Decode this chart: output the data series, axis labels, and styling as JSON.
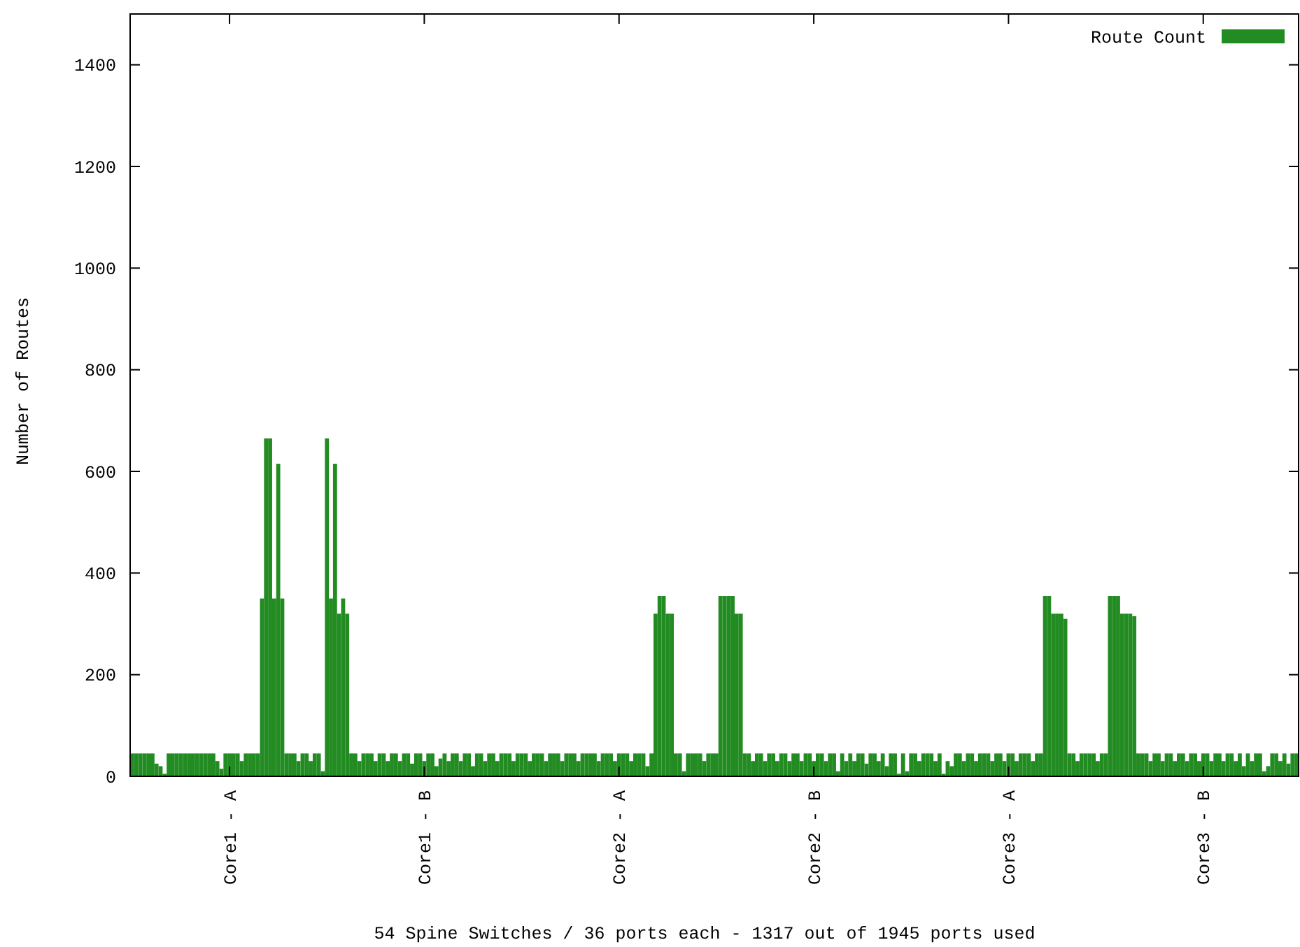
{
  "chart_data": {
    "type": "bar",
    "xlabel": "54 Spine Switches / 36 ports each - 1317 out of 1945 ports used",
    "ylabel": "Number of Routes",
    "legend": "top right",
    "ylim": [
      0,
      1500
    ],
    "yticks": [
      0,
      200,
      400,
      600,
      800,
      1000,
      1200,
      1400
    ],
    "categories": [
      null,
      null,
      null,
      null,
      null,
      null,
      null,
      null,
      null,
      null,
      null,
      null,
      null,
      null,
      null,
      null,
      null,
      null,
      null,
      null,
      null,
      null,
      null,
      null,
      "Core1 - A",
      null,
      null,
      null,
      null,
      null,
      null,
      null,
      null,
      null,
      null,
      null,
      null,
      null,
      null,
      null,
      null,
      null,
      null,
      null,
      null,
      null,
      null,
      null,
      null,
      null,
      null,
      null,
      null,
      null,
      null,
      null,
      null,
      null,
      null,
      null,
      null,
      null,
      null,
      null,
      null,
      null,
      null,
      null,
      null,
      null,
      null,
      null,
      "Core1 - B",
      null,
      null,
      null,
      null,
      null,
      null,
      null,
      null,
      null,
      null,
      null,
      null,
      null,
      null,
      null,
      null,
      null,
      null,
      null,
      null,
      null,
      null,
      null,
      null,
      null,
      null,
      null,
      null,
      null,
      null,
      null,
      null,
      null,
      null,
      null,
      null,
      null,
      null,
      null,
      null,
      null,
      null,
      null,
      null,
      null,
      null,
      null,
      "Core2 - A",
      null,
      null,
      null,
      null,
      null,
      null,
      null,
      null,
      null,
      null,
      null,
      null,
      null,
      null,
      null,
      null,
      null,
      null,
      null,
      null,
      null,
      null,
      null,
      null,
      null,
      null,
      null,
      null,
      null,
      null,
      null,
      null,
      null,
      null,
      null,
      null,
      null,
      null,
      null,
      null,
      null,
      null,
      null,
      null,
      null,
      null,
      null,
      "Core2 - B",
      null,
      null,
      null,
      null,
      null,
      null,
      null,
      null,
      null,
      null,
      null,
      null,
      null,
      null,
      null,
      null,
      null,
      null,
      null,
      null,
      null,
      null,
      null,
      null,
      null,
      null,
      null,
      null,
      null,
      null,
      null,
      null,
      null,
      null,
      null,
      null,
      null,
      null,
      null,
      null,
      null,
      null,
      null,
      null,
      null,
      null,
      null,
      "Core3 - A",
      null,
      null,
      null,
      null,
      null,
      null,
      null,
      null,
      null,
      null,
      null,
      null,
      null,
      null,
      null,
      null,
      null,
      null,
      null,
      null,
      null,
      null,
      null,
      null,
      null,
      null,
      null,
      null,
      null,
      null,
      null,
      null,
      null,
      null,
      null,
      null,
      null,
      null,
      null,
      null,
      null,
      null,
      null,
      null,
      null,
      null,
      null,
      "Core3 - B",
      null,
      null,
      null,
      null,
      null,
      null,
      null,
      null,
      null,
      null,
      null,
      null,
      null,
      null,
      null,
      null,
      null,
      null,
      null,
      null,
      null,
      null,
      null
    ],
    "series": [
      {
        "name": "Route Count",
        "color": "#228b22",
        "values": [
          45,
          45,
          45,
          45,
          45,
          45,
          25,
          20,
          5,
          45,
          45,
          45,
          45,
          45,
          45,
          45,
          45,
          45,
          45,
          45,
          45,
          30,
          15,
          45,
          45,
          45,
          45,
          30,
          45,
          45,
          45,
          45,
          350,
          665,
          665,
          350,
          615,
          350,
          45,
          45,
          45,
          30,
          45,
          45,
          30,
          45,
          45,
          10,
          665,
          350,
          615,
          320,
          350,
          320,
          45,
          45,
          30,
          45,
          45,
          45,
          30,
          45,
          45,
          30,
          45,
          45,
          30,
          45,
          45,
          25,
          45,
          45,
          30,
          45,
          45,
          20,
          35,
          45,
          30,
          45,
          45,
          30,
          45,
          45,
          20,
          45,
          45,
          30,
          45,
          45,
          30,
          45,
          45,
          45,
          30,
          45,
          45,
          45,
          30,
          45,
          45,
          45,
          30,
          45,
          45,
          45,
          30,
          45,
          45,
          45,
          30,
          45,
          45,
          45,
          45,
          30,
          45,
          45,
          45,
          30,
          45,
          45,
          45,
          30,
          45,
          45,
          45,
          20,
          45,
          320,
          355,
          355,
          320,
          320,
          45,
          45,
          10,
          45,
          45,
          45,
          45,
          30,
          45,
          45,
          45,
          355,
          355,
          355,
          355,
          320,
          320,
          45,
          45,
          30,
          45,
          45,
          30,
          45,
          45,
          30,
          45,
          45,
          30,
          45,
          45,
          30,
          45,
          45,
          30,
          45,
          45,
          30,
          45,
          45,
          10,
          45,
          30,
          45,
          30,
          45,
          45,
          25,
          45,
          45,
          30,
          45,
          20,
          45,
          45,
          5,
          45,
          10,
          45,
          45,
          30,
          45,
          45,
          45,
          30,
          45,
          5,
          30,
          20,
          45,
          45,
          30,
          45,
          45,
          30,
          45,
          45,
          45,
          30,
          45,
          45,
          30,
          45,
          45,
          30,
          45,
          45,
          45,
          30,
          45,
          45,
          355,
          355,
          320,
          320,
          320,
          310,
          45,
          45,
          30,
          45,
          45,
          45,
          45,
          30,
          45,
          45,
          355,
          355,
          355,
          320,
          320,
          320,
          315,
          45,
          45,
          45,
          30,
          45,
          45,
          30,
          45,
          45,
          30,
          45,
          45,
          30,
          45,
          45,
          30,
          45,
          45,
          30,
          45,
          45,
          30,
          45,
          45,
          30,
          45,
          20,
          45,
          30,
          45,
          45,
          10,
          20,
          45,
          45,
          30,
          45,
          25,
          45,
          45
        ]
      }
    ]
  }
}
